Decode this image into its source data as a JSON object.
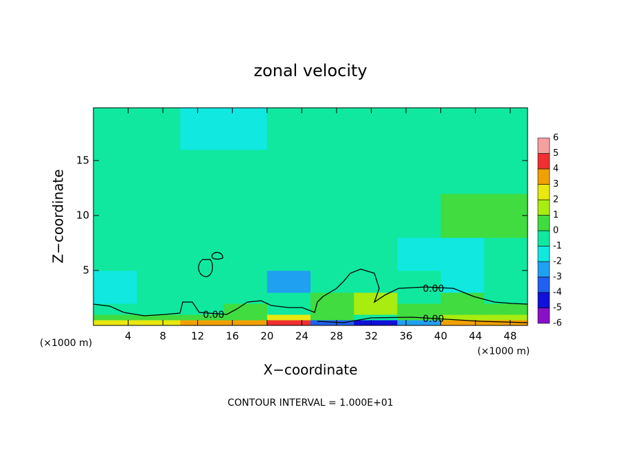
{
  "chart_data": {
    "type": "heatmap",
    "title": "zonal velocity",
    "x_label": "X−coordinate",
    "y_label": "Z−coordinate",
    "x_unit_labels": [
      "(×1000 m)",
      "(×1000 m)"
    ],
    "footnote": "CONTOUR INTERVAL = 1.000E+01",
    "contour_labels": [
      "0.00",
      "0.00",
      "0.00"
    ],
    "xlim": [
      0,
      50
    ],
    "ylim": [
      0,
      19.8
    ],
    "xticks": [
      4,
      8,
      12,
      16,
      20,
      24,
      28,
      32,
      36,
      40,
      44,
      48
    ],
    "yticks": [
      5,
      10,
      15
    ],
    "x": [
      0,
      5,
      10,
      15,
      20,
      25,
      30,
      35,
      40,
      45,
      50
    ],
    "y": [
      0,
      0.5,
      1,
      2,
      3,
      5,
      8,
      12,
      16,
      19.8
    ],
    "z": [
      [
        2.5,
        2.5,
        3,
        3,
        4.5,
        -3.5,
        -4.5,
        -2.5,
        3,
        3
      ],
      [
        0.5,
        0.5,
        0.5,
        0.5,
        2,
        0.5,
        -0.5,
        0.5,
        1.5,
        1
      ],
      [
        -0.5,
        -0.5,
        -0.5,
        0.5,
        -0.5,
        0.5,
        1,
        0.5,
        0.5,
        0.5
      ],
      [
        -1.5,
        -0.5,
        -0.5,
        -0.5,
        -1,
        0.5,
        1,
        -0.5,
        0.5,
        -0.5
      ],
      [
        -1.5,
        -0.5,
        -0.5,
        -1,
        -3,
        -0.5,
        -0.5,
        -1,
        -1.5,
        -1
      ],
      [
        -0.5,
        -0.5,
        -0.5,
        -0.5,
        -1,
        -0.5,
        -1,
        -1.5,
        -1.5,
        -1
      ],
      [
        -0.5,
        -0.5,
        -0.5,
        -0.5,
        -0.5,
        -0.5,
        -0.5,
        -0.5,
        0.5,
        0.5
      ],
      [
        -0.5,
        -0.5,
        -0.5,
        -0.5,
        -0.5,
        -0.5,
        -0.5,
        -0.5,
        -0.5,
        -0.5
      ],
      [
        -0.5,
        -0.5,
        -1.5,
        -1.5,
        -1,
        -0.5,
        -0.5,
        -0.5,
        -0.5,
        -1
      ]
    ],
    "colorbar": {
      "levels": [
        -6,
        -5,
        -4,
        -3,
        -2,
        -1,
        0,
        1,
        2,
        3,
        4,
        5,
        6
      ],
      "colors": [
        "#8a10c8",
        "#1010d8",
        "#2060f0",
        "#20a0f0",
        "#10e8e0",
        "#10e8a0",
        "#40dc40",
        "#a8ec10",
        "#e8e810",
        "#f0a000",
        "#f03030",
        "#f4a0a0"
      ]
    }
  }
}
